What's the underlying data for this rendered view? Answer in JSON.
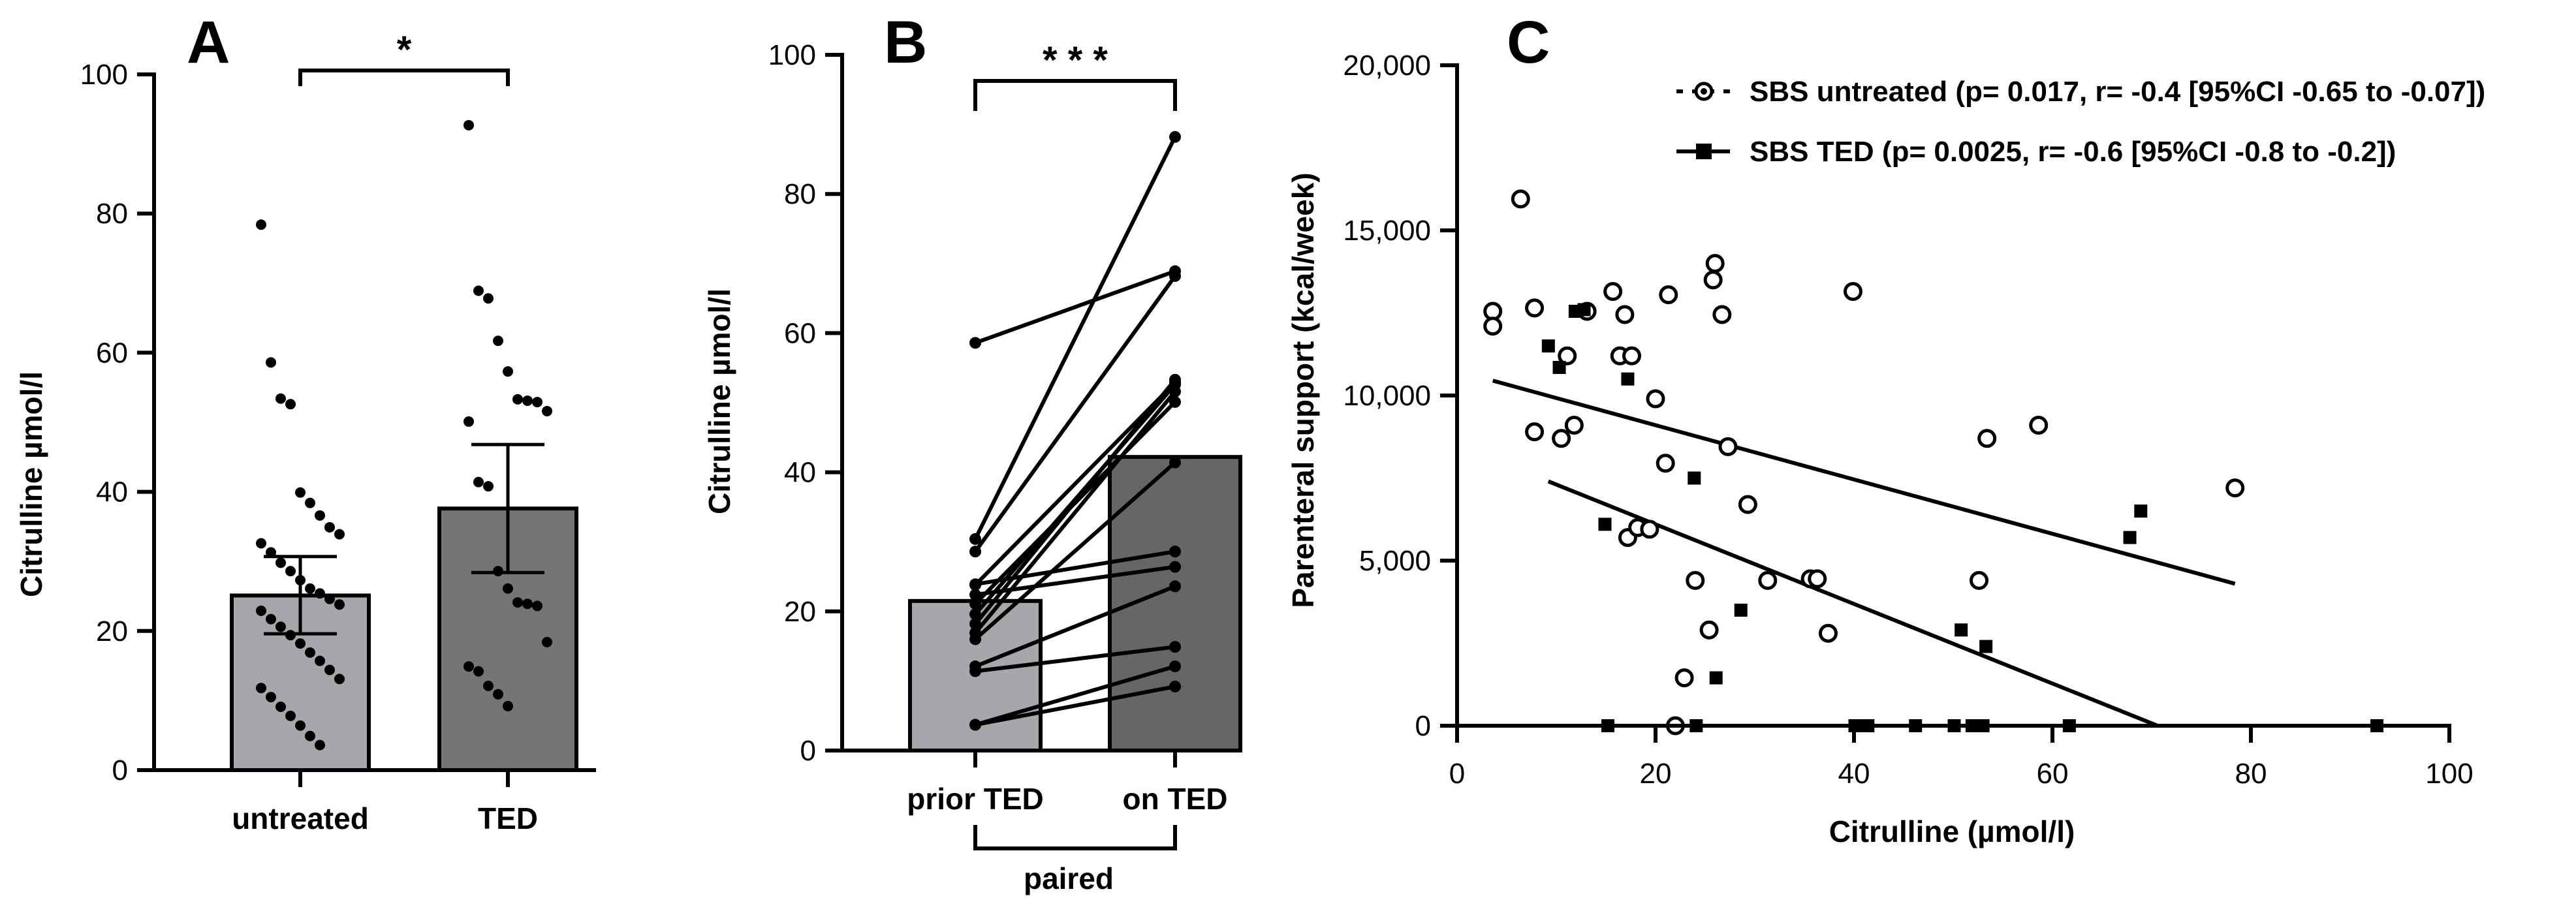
{
  "chart_data": [
    {
      "type": "bar",
      "panel": "A",
      "title": "",
      "ylabel": "Citrulline µmol/l",
      "xlabel": "",
      "ylim": [
        0,
        100
      ],
      "yticks": [
        0,
        20,
        40,
        60,
        80,
        100
      ],
      "categories": [
        "untreated",
        "TED"
      ],
      "bar_colors": [
        "#a7a7ab",
        "#757575"
      ],
      "values": [
        25.1,
        37.6
      ],
      "error_low": [
        19.6,
        28.4
      ],
      "error_high": [
        30.7,
        46.8
      ],
      "significance": "*",
      "points": [
        [
          78.4,
          58.6,
          53.4,
          52.6,
          39.9,
          38.4,
          36.6,
          34.9,
          33.9,
          32.6,
          31.3,
          29.8,
          28.6,
          27.3,
          26.1,
          25.4,
          24.6,
          23.8,
          22.9,
          21.7,
          20.6,
          19.4,
          18.2,
          16.9,
          15.7,
          14.4,
          13.1,
          11.8,
          10.5,
          9.1,
          7.8,
          6.4,
          4.9,
          3.6
        ],
        [
          92.7,
          68.9,
          67.8,
          61.7,
          57.3,
          53.3,
          53.1,
          52.9,
          51.6,
          50.1,
          41.4,
          40.8,
          28.6,
          26.1,
          24.1,
          23.9,
          23.6,
          18.4,
          14.9,
          14.2,
          12.1,
          10.9,
          9.2
        ]
      ]
    },
    {
      "type": "bar",
      "panel": "B",
      "title": "",
      "ylabel": "Citrulline µmol/l",
      "xlabel": "paired",
      "ylim": [
        0,
        100
      ],
      "yticks": [
        0,
        20,
        40,
        60,
        80,
        100
      ],
      "categories": [
        "prior TED",
        "on TED"
      ],
      "bar_colors": [
        "#a7a7ab",
        "#666666"
      ],
      "values": [
        21.5,
        42.2
      ],
      "significance": "* * *",
      "pairs": [
        [
          3.7,
          9.2
        ],
        [
          3.7,
          12.1
        ],
        [
          11.4,
          14.9
        ],
        [
          12.1,
          23.6
        ],
        [
          58.6,
          68.9
        ],
        [
          30.4,
          88.2
        ],
        [
          28.6,
          68.2
        ],
        [
          23.8,
          52.9
        ],
        [
          22.4,
          26.4
        ],
        [
          21.1,
          50.1
        ],
        [
          19.6,
          52.6
        ],
        [
          18.2,
          53.3
        ],
        [
          16.9,
          51.6
        ],
        [
          16.0,
          41.4
        ],
        [
          23.9,
          28.6
        ]
      ]
    },
    {
      "type": "scatter",
      "panel": "C",
      "title": "",
      "xlabel": "Citrulline (µmol/l)",
      "ylabel": "Parenteral support (kcal/week)",
      "xlim": [
        0,
        100
      ],
      "ylim": [
        0,
        20000
      ],
      "xticks": [
        0,
        20,
        40,
        60,
        80,
        100
      ],
      "ytick_labels": [
        "0",
        "5,000",
        "10,000",
        "15,000",
        "20,000"
      ],
      "yticks": [
        0,
        5000,
        10000,
        15000,
        20000
      ],
      "series": [
        {
          "name": "SBS untreated (p= 0.017, r= -0.4 [95%CI -0.65 to -0.07])",
          "marker": "open-circle",
          "points": [
            [
              3.6,
              12550
            ],
            [
              3.6,
              12100
            ],
            [
              6.4,
              15950
            ],
            [
              7.8,
              8900
            ],
            [
              7.8,
              12650
            ],
            [
              10.5,
              8700
            ],
            [
              11.1,
              11200
            ],
            [
              11.8,
              9100
            ],
            [
              13.1,
              12550
            ],
            [
              15.7,
              13150
            ],
            [
              16.4,
              11200
            ],
            [
              16.9,
              12450
            ],
            [
              17.6,
              11200
            ],
            [
              17.2,
              5700
            ],
            [
              18.2,
              6000
            ],
            [
              19.4,
              5950
            ],
            [
              20.0,
              9900
            ],
            [
              21.0,
              7950
            ],
            [
              21.3,
              13050
            ],
            [
              22.9,
              1450
            ],
            [
              24.0,
              4400
            ],
            [
              25.4,
              2900
            ],
            [
              25.8,
              13500
            ],
            [
              26.0,
              14000
            ],
            [
              26.7,
              12450
            ],
            [
              27.3,
              8450
            ],
            [
              29.3,
              6700
            ],
            [
              31.3,
              4400
            ],
            [
              35.6,
              4450
            ],
            [
              36.3,
              4450
            ],
            [
              37.4,
              2800
            ],
            [
              39.9,
              13150
            ],
            [
              52.6,
              4400
            ],
            [
              53.4,
              8700
            ],
            [
              58.6,
              9100
            ],
            [
              78.4,
              7200
            ],
            [
              22.0,
              0
            ]
          ],
          "fit": [
            [
              3.6,
              10450
            ],
            [
              78.4,
              4300
            ]
          ]
        },
        {
          "name": "SBS TED (p= 0.0025, r= -0.6 [95%CI -0.8 to -0.2])",
          "marker": "filled-square",
          "points": [
            [
              9.2,
              11500
            ],
            [
              10.3,
              10850
            ],
            [
              11.9,
              12550
            ],
            [
              12.8,
              12600
            ],
            [
              14.9,
              6100
            ],
            [
              17.2,
              10500
            ],
            [
              23.9,
              7500
            ],
            [
              26.1,
              1450
            ],
            [
              28.6,
              3500
            ],
            [
              50.8,
              2900
            ],
            [
              53.3,
              2400
            ],
            [
              67.8,
              5700
            ],
            [
              68.9,
              6500
            ],
            [
              15.2,
              0
            ],
            [
              24.1,
              0
            ],
            [
              40.1,
              0
            ],
            [
              41.4,
              0
            ],
            [
              46.2,
              0
            ],
            [
              50.1,
              0
            ],
            [
              51.9,
              0
            ],
            [
              53.0,
              0
            ],
            [
              61.7,
              0
            ],
            [
              92.7,
              0
            ]
          ],
          "fit": [
            [
              9.2,
              7400
            ],
            [
              70.6,
              0
            ]
          ]
        }
      ]
    }
  ]
}
